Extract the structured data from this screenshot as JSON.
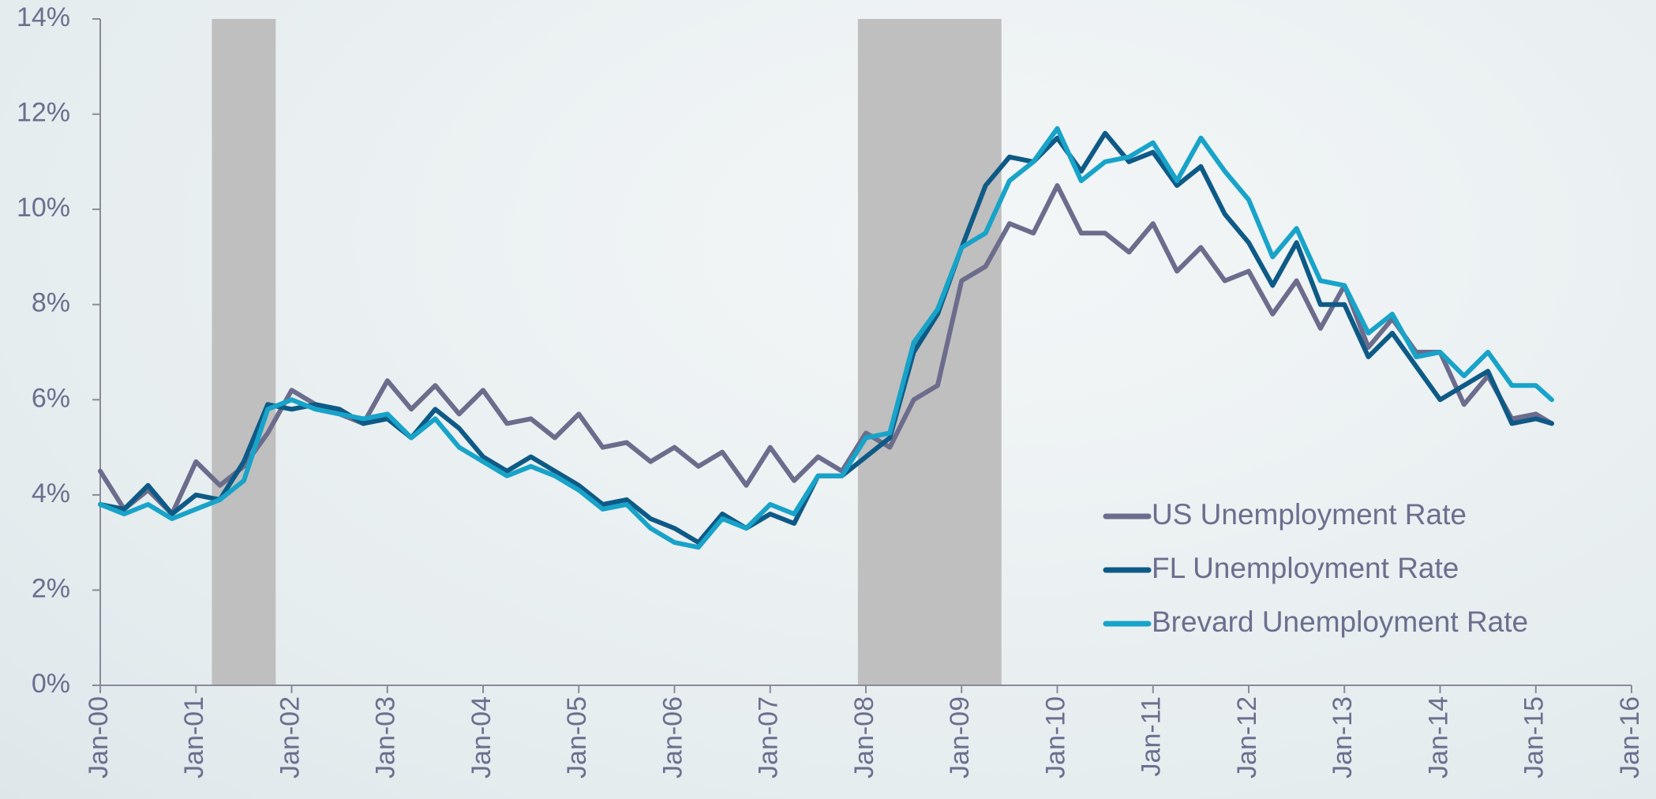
{
  "chart_data": {
    "type": "line",
    "x": [
      "Jan-00",
      "Apr-00",
      "Jul-00",
      "Oct-00",
      "Jan-01",
      "Apr-01",
      "Jul-01",
      "Oct-01",
      "Jan-02",
      "Apr-02",
      "Jul-02",
      "Oct-02",
      "Jan-03",
      "Apr-03",
      "Jul-03",
      "Oct-03",
      "Jan-04",
      "Apr-04",
      "Jul-04",
      "Oct-04",
      "Jan-05",
      "Apr-05",
      "Jul-05",
      "Oct-05",
      "Jan-06",
      "Apr-06",
      "Jul-06",
      "Oct-06",
      "Jan-07",
      "Apr-07",
      "Jul-07",
      "Oct-07",
      "Jan-08",
      "Apr-08",
      "Jul-08",
      "Oct-08",
      "Jan-09",
      "Apr-09",
      "Jul-09",
      "Oct-09",
      "Jan-10",
      "Apr-10",
      "Jul-10",
      "Oct-10",
      "Jan-11",
      "Apr-11",
      "Jul-11",
      "Oct-11",
      "Jan-12",
      "Apr-12",
      "Jul-12",
      "Oct-12",
      "Jan-13",
      "Apr-13",
      "Jul-13",
      "Oct-13",
      "Jan-14",
      "Apr-14",
      "Jul-14",
      "Oct-14",
      "Jan-15",
      "Mar-15"
    ],
    "series": [
      {
        "name": "US Unemployment Rate",
        "color": "#6c6c8c",
        "values": [
          4.5,
          3.7,
          4.1,
          3.6,
          4.7,
          4.2,
          4.6,
          5.3,
          6.2,
          5.9,
          5.7,
          5.5,
          6.4,
          5.8,
          6.3,
          5.7,
          6.2,
          5.5,
          5.6,
          5.2,
          5.7,
          5.0,
          5.1,
          4.7,
          5.0,
          4.6,
          4.9,
          4.2,
          5.0,
          4.3,
          4.8,
          4.5,
          5.3,
          5.0,
          6.0,
          6.3,
          8.5,
          8.8,
          9.7,
          9.5,
          10.5,
          9.5,
          9.5,
          9.1,
          9.7,
          8.7,
          9.2,
          8.5,
          8.7,
          7.8,
          8.5,
          7.5,
          8.4,
          7.1,
          7.7,
          7.0,
          7.0,
          5.9,
          6.5,
          5.6,
          5.7,
          5.5
        ]
      },
      {
        "name": "FL Unemployment Rate",
        "color": "#0e5a86",
        "values": [
          3.8,
          3.7,
          4.2,
          3.6,
          4.0,
          3.9,
          4.7,
          5.9,
          5.8,
          5.9,
          5.8,
          5.5,
          5.6,
          5.2,
          5.8,
          5.4,
          4.8,
          4.5,
          4.8,
          4.5,
          4.2,
          3.8,
          3.9,
          3.5,
          3.3,
          3.0,
          3.6,
          3.3,
          3.6,
          3.4,
          4.4,
          4.4,
          4.8,
          5.2,
          7.0,
          7.8,
          9.2,
          10.5,
          11.1,
          11.0,
          11.5,
          10.8,
          11.6,
          11.0,
          11.2,
          10.5,
          10.9,
          9.9,
          9.3,
          8.4,
          9.3,
          8.0,
          8.0,
          6.9,
          7.4,
          6.7,
          6.0,
          6.3,
          6.6,
          5.5,
          5.6,
          5.5
        ]
      },
      {
        "name": "Brevard Unemployment Rate",
        "color": "#18a3c9",
        "values": [
          3.8,
          3.6,
          3.8,
          3.5,
          3.7,
          3.9,
          4.3,
          5.8,
          6.0,
          5.8,
          5.7,
          5.6,
          5.7,
          5.2,
          5.6,
          5.0,
          4.7,
          4.4,
          4.6,
          4.4,
          4.1,
          3.7,
          3.8,
          3.3,
          3.0,
          2.9,
          3.5,
          3.3,
          3.8,
          3.6,
          4.4,
          4.4,
          5.2,
          5.3,
          7.2,
          7.9,
          9.2,
          9.5,
          10.6,
          11.0,
          11.7,
          10.6,
          11.0,
          11.1,
          11.4,
          10.6,
          11.5,
          10.8,
          10.2,
          9.0,
          9.6,
          8.5,
          8.4,
          7.4,
          7.8,
          6.9,
          7.0,
          6.5,
          7.0,
          6.3,
          6.3,
          6.0
        ]
      }
    ],
    "recessions": [
      {
        "start": "Mar-01",
        "end": "Nov-01",
        "color": "#bfbfbf"
      },
      {
        "start": "Dec-07",
        "end": "Jun-09",
        "color": "#bfbfbf"
      }
    ],
    "xlim": [
      "Jan-00",
      "Jan-16"
    ],
    "xticks": [
      "Jan-00",
      "Jan-01",
      "Jan-02",
      "Jan-03",
      "Jan-04",
      "Jan-05",
      "Jan-06",
      "Jan-07",
      "Jan-08",
      "Jan-09",
      "Jan-10",
      "Jan-11",
      "Jan-12",
      "Jan-13",
      "Jan-14",
      "Jan-15",
      "Jan-16"
    ],
    "ylim": [
      0,
      14
    ],
    "yticks": [
      {
        "value": 0,
        "label": "0%"
      },
      {
        "value": 2,
        "label": "2%"
      },
      {
        "value": 4,
        "label": "4%"
      },
      {
        "value": 6,
        "label": "6%"
      },
      {
        "value": 8,
        "label": "8%"
      },
      {
        "value": 10,
        "label": "10%"
      },
      {
        "value": 12,
        "label": "12%"
      },
      {
        "value": 14,
        "label": "14%"
      }
    ],
    "grid": false,
    "legend": "right"
  }
}
